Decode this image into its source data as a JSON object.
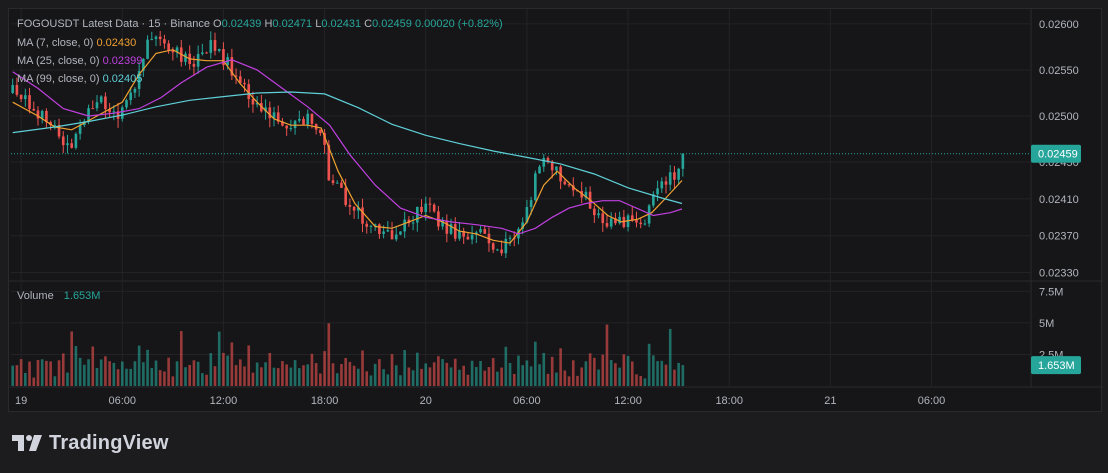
{
  "header": {
    "symbol_line": "FOGOUSDT Latest Data · 15 · Binance",
    "ohlc": [
      {
        "key": "O",
        "value": "0.02439"
      },
      {
        "key": "H",
        "value": "0.02471"
      },
      {
        "key": "L",
        "value": "0.02431"
      },
      {
        "key": "C",
        "value": "0.02459"
      }
    ],
    "change": "0.00020 (+0.82%)"
  },
  "indicators": [
    {
      "label": "MA (7, close, 0)",
      "value": "0.02430",
      "color": "#f0a030"
    },
    {
      "label": "MA (25, close, 0)",
      "value": "0.02399",
      "color": "#c040e0"
    },
    {
      "label": "MA (99, close, 0)",
      "value": "0.02405",
      "color": "#5fd0d8"
    }
  ],
  "volume_panel": {
    "label": "Volume",
    "value": "1.653M",
    "price_tag": "1.653M",
    "axis_ticks": [
      {
        "value": 7500000,
        "label": "7.5M"
      },
      {
        "value": 5000000,
        "label": "5M"
      },
      {
        "value": 2500000,
        "label": "2.5M"
      }
    ]
  },
  "price_tag": "0.02459",
  "colors": {
    "up": "#26a69a",
    "down": "#ef5350",
    "tag_bg": "#26a69a"
  },
  "logo": {
    "text": "TradingView"
  },
  "chart_data": {
    "type": "candlestick",
    "interval_minutes": 15,
    "price_axis": {
      "ticks": [
        0.026,
        0.0255,
        0.025,
        0.0245,
        0.0241,
        0.0237,
        0.0233
      ],
      "tick_labels": [
        "0.02600",
        "0.02550",
        "0.02500",
        "0.02450",
        "0.02410",
        "0.02370",
        "0.02330"
      ],
      "ylim": [
        0.02323,
        0.02614
      ],
      "last_price": 0.02459
    },
    "volume_axis": {
      "ylim": [
        0,
        8000000
      ]
    },
    "time_axis": {
      "ticks": [
        "19",
        "06:00",
        "12:00",
        "18:00",
        "20",
        "06:00",
        "12:00",
        "18:00",
        "21",
        "06:00"
      ],
      "tick_hours": [
        0,
        6,
        12,
        18,
        24,
        30,
        36,
        42,
        48,
        54
      ],
      "start_hour": -0.6,
      "end_hour": 59.9
    },
    "anchors": [
      [
        -0.5,
        0.02525
      ],
      [
        0.8,
        0.02508
      ],
      [
        1.8,
        0.02488
      ],
      [
        2.8,
        0.02468
      ],
      [
        3.6,
        0.02492
      ],
      [
        4.6,
        0.02515
      ],
      [
        5.6,
        0.025
      ],
      [
        6.6,
        0.02525
      ],
      [
        7.5,
        0.02575
      ],
      [
        8.3,
        0.0258
      ],
      [
        9.3,
        0.02568
      ],
      [
        10.1,
        0.02552
      ],
      [
        11.2,
        0.02575
      ],
      [
        12.3,
        0.02556
      ],
      [
        13.3,
        0.02526
      ],
      [
        14.3,
        0.02505
      ],
      [
        15.6,
        0.02487
      ],
      [
        17.0,
        0.02495
      ],
      [
        17.9,
        0.02488
      ],
      [
        18.3,
        0.0243
      ],
      [
        19.3,
        0.0241
      ],
      [
        20.5,
        0.02385
      ],
      [
        21.3,
        0.0237
      ],
      [
        22.6,
        0.02378
      ],
      [
        23.6,
        0.02398
      ],
      [
        24.4,
        0.02394
      ],
      [
        25.6,
        0.02373
      ],
      [
        26.6,
        0.0237
      ],
      [
        27.4,
        0.0237
      ],
      [
        28.4,
        0.02358
      ],
      [
        29.3,
        0.02363
      ],
      [
        30.1,
        0.024
      ],
      [
        30.7,
        0.02448
      ],
      [
        31.4,
        0.0245
      ],
      [
        32.3,
        0.02425
      ],
      [
        33.3,
        0.02413
      ],
      [
        34.3,
        0.02395
      ],
      [
        35.2,
        0.0238
      ],
      [
        36.0,
        0.0239
      ],
      [
        37.0,
        0.0239
      ],
      [
        37.8,
        0.0242
      ],
      [
        38.8,
        0.0244
      ],
      [
        39.2,
        0.02459
      ]
    ],
    "series": [
      {
        "name": "MA (7, close, 0)",
        "color": "#f0a030",
        "points": [
          [
            -0.5,
            0.02515
          ],
          [
            1,
            0.025
          ],
          [
            2,
            0.02488
          ],
          [
            3,
            0.02485
          ],
          [
            4,
            0.02495
          ],
          [
            5,
            0.02505
          ],
          [
            6,
            0.02515
          ],
          [
            7,
            0.02545
          ],
          [
            8,
            0.02568
          ],
          [
            9,
            0.02572
          ],
          [
            10,
            0.02562
          ],
          [
            11,
            0.0256
          ],
          [
            12,
            0.0256
          ],
          [
            13,
            0.02535
          ],
          [
            14,
            0.02515
          ],
          [
            15,
            0.02497
          ],
          [
            16,
            0.0249
          ],
          [
            17,
            0.0249
          ],
          [
            17.8,
            0.02487
          ],
          [
            18.8,
            0.0244
          ],
          [
            19.8,
            0.02405
          ],
          [
            21,
            0.0238
          ],
          [
            22,
            0.02378
          ],
          [
            23,
            0.02385
          ],
          [
            24,
            0.02392
          ],
          [
            25,
            0.02385
          ],
          [
            26,
            0.02375
          ],
          [
            27,
            0.02372
          ],
          [
            28,
            0.02365
          ],
          [
            29,
            0.02362
          ],
          [
            30,
            0.02385
          ],
          [
            31,
            0.02425
          ],
          [
            31.8,
            0.0244
          ],
          [
            32.8,
            0.02422
          ],
          [
            33.8,
            0.02408
          ],
          [
            34.8,
            0.02392
          ],
          [
            35.6,
            0.02385
          ],
          [
            36.6,
            0.02388
          ],
          [
            37.4,
            0.02395
          ],
          [
            38.3,
            0.02412
          ],
          [
            39.2,
            0.0243
          ]
        ]
      },
      {
        "name": "MA (25, close, 0)",
        "color": "#c040e0",
        "points": [
          [
            -0.5,
            0.02548
          ],
          [
            1,
            0.0253
          ],
          [
            2.5,
            0.02508
          ],
          [
            4,
            0.025
          ],
          [
            5.5,
            0.02503
          ],
          [
            7,
            0.02508
          ],
          [
            8.3,
            0.0252
          ],
          [
            9.5,
            0.02536
          ],
          [
            11,
            0.02553
          ],
          [
            12.5,
            0.02561
          ],
          [
            14,
            0.0255
          ],
          [
            15.5,
            0.0253
          ],
          [
            17,
            0.0251
          ],
          [
            18.3,
            0.0249
          ],
          [
            19.5,
            0.02458
          ],
          [
            21,
            0.02425
          ],
          [
            22.5,
            0.024
          ],
          [
            24,
            0.0239
          ],
          [
            25.5,
            0.02385
          ],
          [
            27,
            0.02382
          ],
          [
            28.5,
            0.02378
          ],
          [
            29.5,
            0.02372
          ],
          [
            30.5,
            0.02378
          ],
          [
            31.5,
            0.0239
          ],
          [
            32.5,
            0.024
          ],
          [
            33.5,
            0.02405
          ],
          [
            34.5,
            0.02408
          ],
          [
            35.5,
            0.02408
          ],
          [
            36.5,
            0.024
          ],
          [
            37.5,
            0.02392
          ],
          [
            38.5,
            0.02395
          ],
          [
            39.2,
            0.02399
          ]
        ]
      },
      {
        "name": "MA (99, close, 0)",
        "color": "#5fd0d8",
        "points": [
          [
            -0.5,
            0.02482
          ],
          [
            2,
            0.02488
          ],
          [
            4,
            0.02494
          ],
          [
            6,
            0.02501
          ],
          [
            8,
            0.0251
          ],
          [
            10,
            0.02517
          ],
          [
            12,
            0.02521
          ],
          [
            14,
            0.02525
          ],
          [
            16,
            0.02526
          ],
          [
            18,
            0.02524
          ],
          [
            20,
            0.02509
          ],
          [
            22,
            0.02491
          ],
          [
            24,
            0.02479
          ],
          [
            26,
            0.0247
          ],
          [
            28,
            0.02462
          ],
          [
            30,
            0.02455
          ],
          [
            32,
            0.02448
          ],
          [
            34,
            0.02437
          ],
          [
            36,
            0.02422
          ],
          [
            38,
            0.02411
          ],
          [
            39.2,
            0.02405
          ]
        ]
      }
    ]
  }
}
